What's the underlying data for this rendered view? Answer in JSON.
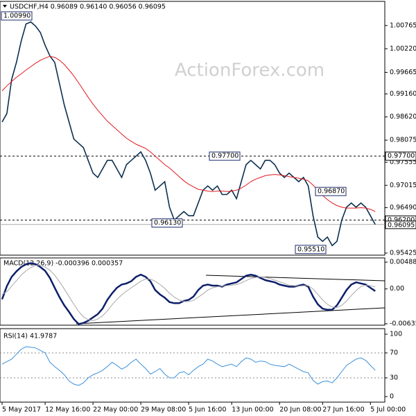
{
  "watermark": "ActionForex.com",
  "chart_data": [
    {
      "type": "line",
      "title": "USDCHF,H4 0.96089 0.96140 0.96056 0.96095",
      "categories": [
        "5 May 2017",
        null,
        null,
        null,
        null,
        null,
        null,
        null,
        null,
        "12 May 16:00",
        null,
        null,
        null,
        null,
        null,
        null,
        null,
        null,
        null,
        "22 May 00:00",
        null,
        null,
        null,
        null,
        null,
        null,
        null,
        null,
        null,
        "29 May 08:00",
        null,
        null,
        null,
        null,
        null,
        null,
        null,
        null,
        null,
        "5 Jun 16:00",
        null,
        null,
        null,
        null,
        null,
        null,
        null,
        null,
        "13 Jun 00:00",
        null,
        null,
        null,
        null,
        null,
        null,
        null,
        null,
        null,
        "20 Jun 08:00",
        null,
        null,
        null,
        null,
        null,
        null,
        null,
        null,
        "27 Jun 16:00",
        null,
        null,
        null,
        null,
        null,
        null,
        null,
        null,
        null,
        "5 Jul 00:00",
        null
      ],
      "series": [
        {
          "color": "#0b2f4f",
          "values": [
            0.985,
            0.987,
            0.995,
            0.999,
            1.004,
            1.008,
            1.0085,
            1.0075,
            1.006,
            1.003,
            1.0005,
            0.999,
            0.994,
            0.989,
            0.985,
            0.981,
            0.98,
            0.979,
            0.976,
            0.973,
            0.972,
            0.974,
            0.976,
            0.976,
            0.974,
            0.972,
            0.975,
            0.976,
            0.977,
            0.978,
            0.976,
            0.973,
            0.969,
            0.97,
            0.971,
            0.965,
            0.962,
            0.963,
            0.964,
            0.963,
            0.963,
            0.966,
            0.969,
            0.97,
            0.969,
            0.97,
            0.968,
            0.968,
            0.969,
            0.967,
            0.971,
            0.975,
            0.976,
            0.975,
            0.974,
            0.976,
            0.976,
            0.975,
            0.973,
            0.972,
            0.973,
            0.972,
            0.971,
            0.972,
            0.97,
            0.963,
            0.958,
            0.957,
            0.958,
            0.956,
            0.957,
            0.962,
            0.965,
            0.966,
            0.965,
            0.966,
            0.965,
            0.963,
            0.96095
          ]
        },
        {
          "color": "#e0191f",
          "values": [
            0.9923,
            0.9935,
            0.9945,
            0.9955,
            0.9963,
            0.9972,
            0.998,
            0.9988,
            0.9995,
            1.0,
            1.0004,
            1.0002,
            0.9995,
            0.9985,
            0.9972,
            0.9958,
            0.9942,
            0.9925,
            0.9908,
            0.9892,
            0.9878,
            0.9865,
            0.9852,
            0.9842,
            0.9832,
            0.9822,
            0.9812,
            0.9805,
            0.9798,
            0.9793,
            0.9788,
            0.978,
            0.977,
            0.976,
            0.975,
            0.9742,
            0.9732,
            0.9722,
            0.9712,
            0.9704,
            0.9698,
            0.9692,
            0.969,
            0.9688,
            0.9687,
            0.9688,
            0.9688,
            0.9687,
            0.9688,
            0.969,
            0.9695,
            0.9702,
            0.971,
            0.9716,
            0.972,
            0.9724,
            0.9726,
            0.9727,
            0.9726,
            0.9724,
            0.9722,
            0.972,
            0.9718,
            0.9716,
            0.9712,
            0.9702,
            0.969,
            0.9678,
            0.9668,
            0.966,
            0.9654,
            0.965,
            0.9648,
            0.9648,
            0.9648,
            0.9649,
            0.9648,
            0.9645,
            0.964
          ]
        }
      ],
      "ylim": [
        0.95376,
        1.01331
      ],
      "yticks": [
        1.00765,
        {
          "value": 1.0022,
          "label": "1.00220"
        },
        0.99665,
        {
          "value": 0.9916,
          "label": "0.99160"
        },
        {
          "value": 0.9862,
          "label": "0.98620"
        },
        0.98075,
        0.97555,
        0.97015,
        {
          "value": 0.9649,
          "label": "0.96490"
        },
        0.95425
      ],
      "hlines": [
        {
          "value": 0.977,
          "label": "0.97700"
        },
        {
          "value": 0.962,
          "label": "0.96200"
        }
      ],
      "last_price": 0.96095,
      "annotations": [
        {
          "value": 1.0099,
          "label": "1.00990"
        },
        {
          "value": 0.977,
          "label": "0.97700"
        },
        {
          "value": 0.9687,
          "label": "0.96870"
        },
        {
          "value": 0.9613,
          "label": "0.96130"
        },
        {
          "value": 0.9551,
          "label": "0.95510"
        }
      ]
    },
    {
      "type": "line",
      "title": "MACD(12,26,9) -0.000396 0.000357",
      "series": [
        {
          "color": "#0d1f6b",
          "values": [
            -0.0019,
            0.0005,
            0.0022,
            0.0032,
            0.004,
            0.0045,
            0.0047,
            0.0045,
            0.004,
            0.0033,
            0.002,
            0.0002,
            -0.0015,
            -0.003,
            -0.0042,
            -0.0055,
            -0.0064,
            -0.0062,
            -0.0058,
            -0.0052,
            -0.0046,
            -0.0036,
            -0.002,
            -0.0008,
            0.0002,
            0.0008,
            0.001,
            0.0014,
            0.0022,
            0.0026,
            0.0022,
            0.0014,
            -0.0002,
            -0.001,
            -0.0016,
            -0.0024,
            -0.0026,
            -0.0026,
            -0.0022,
            -0.002,
            -0.0014,
            -0.0002,
            0.0006,
            0.0008,
            0.0006,
            0.0006,
            0.0004,
            0.0008,
            0.001,
            0.0012,
            0.0018,
            0.0024,
            0.0026,
            0.0024,
            0.002,
            0.0016,
            0.0014,
            0.0012,
            0.0008,
            0.0006,
            0.0004,
            0.0004,
            0.0006,
            0.0008,
            0.0004,
            -0.0014,
            -0.0028,
            -0.0036,
            -0.0038,
            -0.0038,
            -0.003,
            -0.0016,
            -0.0002,
            0.0008,
            0.0012,
            0.001,
            0.0008,
            0.0002,
            -0.000396
          ]
        },
        {
          "color": "#a8a8a8",
          "values": [
            -0.001,
            -0.0005,
            0.0005,
            0.0015,
            0.0025,
            0.0033,
            0.0039,
            0.0043,
            0.0043,
            0.004,
            0.0034,
            0.0025,
            0.0013,
            0.0,
            -0.0014,
            -0.0028,
            -0.0041,
            -0.0051,
            -0.0056,
            -0.0058,
            -0.0055,
            -0.0049,
            -0.004,
            -0.0029,
            -0.0019,
            -0.0011,
            -0.0004,
            0.0002,
            0.0008,
            0.0014,
            0.0018,
            0.0018,
            0.0014,
            0.0008,
            0.0001,
            -0.0008,
            -0.0015,
            -0.002,
            -0.0023,
            -0.0023,
            -0.0021,
            -0.0015,
            -0.0009,
            -0.0002,
            0.0002,
            0.0004,
            0.0005,
            0.0006,
            0.0007,
            0.0008,
            0.0011,
            0.0015,
            0.0019,
            0.0021,
            0.0022,
            0.0021,
            0.0019,
            0.0016,
            0.0013,
            0.001,
            0.0007,
            0.0006,
            0.0005,
            0.0006,
            0.0006,
            0.0,
            -0.001,
            -0.002,
            -0.0028,
            -0.0033,
            -0.0034,
            -0.003,
            -0.0022,
            -0.0012,
            -0.0003,
            0.0004,
            0.0007,
            0.0006,
            0.000357
          ]
        }
      ],
      "ylim": [
        -0.00661,
        0.00565
      ],
      "yticks": [
        0.004883,
        {
          "value": 0,
          "label": "0.00"
        },
        -0.006354
      ]
    },
    {
      "type": "line",
      "title": "RSI(14) 41.9787",
      "series": [
        {
          "color": "#3a8fd8",
          "values": [
            52,
            56,
            60,
            68,
            76,
            80,
            79,
            78,
            74,
            70,
            55,
            48,
            42,
            35,
            25,
            20,
            18,
            22,
            30,
            35,
            38,
            42,
            48,
            55,
            50,
            44,
            48,
            55,
            60,
            52,
            45,
            36,
            40,
            45,
            36,
            30,
            30,
            38,
            40,
            35,
            42,
            48,
            52,
            60,
            57,
            52,
            48,
            50,
            52,
            48,
            56,
            62,
            60,
            55,
            57,
            56,
            52,
            50,
            49,
            48,
            52,
            48,
            44,
            40,
            38,
            26,
            20,
            24,
            25,
            22,
            30,
            40,
            50,
            55,
            60,
            62,
            58,
            50,
            41.9787
          ]
        }
      ],
      "ylim": [
        -8.9,
        108.9
      ],
      "yticks": [
        100,
        70,
        30,
        0
      ],
      "hlines": [
        70,
        30
      ]
    }
  ]
}
